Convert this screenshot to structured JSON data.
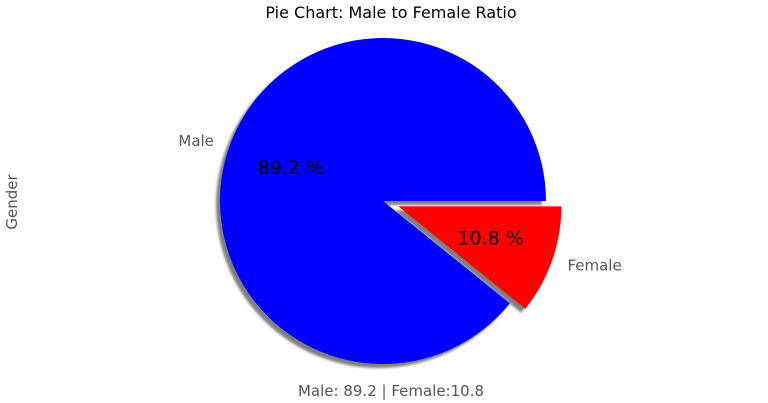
{
  "chart_data": {
    "type": "pie",
    "title": "Pie Chart: Male to Female Ratio",
    "ylabel": "Gender",
    "xlabel": "Male: 89.2 | Female:10.8",
    "start_angle_deg": 0,
    "direction": "counterclockwise",
    "shadow": true,
    "slices": [
      {
        "label": "Male",
        "value": 89.2,
        "pct_label": "89.2 %",
        "color": "#0000ff",
        "explode": 0
      },
      {
        "label": "Female",
        "value": 10.8,
        "pct_label": "10.8 %",
        "color": "#ff0000",
        "explode": 0.1
      }
    ]
  }
}
